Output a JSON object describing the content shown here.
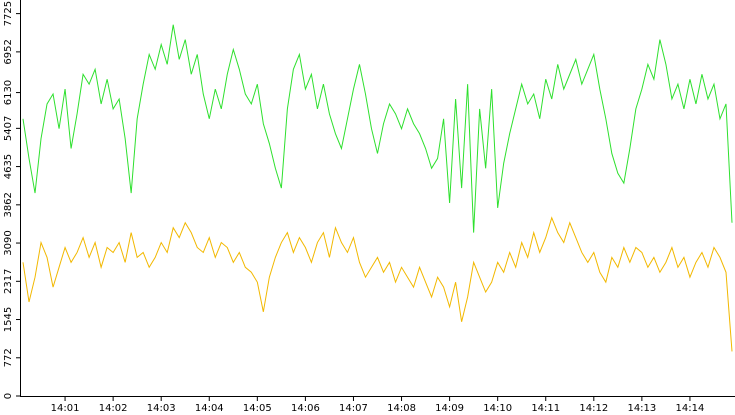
{
  "chart_data": {
    "type": "line",
    "categories": [
      null,
      null,
      null,
      null,
      null,
      null,
      null,
      "14:01",
      null,
      null,
      null,
      null,
      null,
      null,
      null,
      "14:02",
      null,
      null,
      null,
      null,
      null,
      null,
      null,
      "14:03",
      null,
      null,
      null,
      null,
      null,
      null,
      null,
      "14:04",
      null,
      null,
      null,
      null,
      null,
      null,
      null,
      "14:05",
      null,
      null,
      null,
      null,
      null,
      null,
      null,
      "14:06",
      null,
      null,
      null,
      null,
      null,
      null,
      null,
      "14:07",
      null,
      null,
      null,
      null,
      null,
      null,
      null,
      "14:08",
      null,
      null,
      null,
      null,
      null,
      null,
      null,
      "14:09",
      null,
      null,
      null,
      null,
      null,
      null,
      null,
      "14:10",
      null,
      null,
      null,
      null,
      null,
      null,
      null,
      "14:11",
      null,
      null,
      null,
      null,
      null,
      null,
      null,
      "14:12",
      null,
      null,
      null,
      null,
      null,
      null,
      null,
      "14:13",
      null,
      null,
      null,
      null,
      null,
      null,
      null,
      "14:14",
      null,
      null,
      null,
      null,
      null,
      null,
      null
    ],
    "series": [
      {
        "color": "#2ee02e",
        "values": [
          5600,
          4800,
          4100,
          5200,
          5900,
          6100,
          5400,
          6200,
          5000,
          5700,
          6500,
          6300,
          6600,
          5900,
          6400,
          5800,
          6000,
          5200,
          4100,
          5600,
          6300,
          6900,
          6600,
          7100,
          6700,
          7500,
          6800,
          7200,
          6500,
          6900,
          6100,
          5600,
          6200,
          5800,
          6500,
          7000,
          6600,
          6100,
          5900,
          6300,
          5500,
          5100,
          4600,
          4200,
          5800,
          6600,
          6900,
          6200,
          6500,
          5800,
          6300,
          5700,
          5300,
          5000,
          5600,
          6200,
          6700,
          6100,
          5400,
          4900,
          5500,
          5900,
          5700,
          5400,
          5800,
          5500,
          5300,
          5000,
          4600,
          4800,
          5600,
          3900,
          6000,
          4200,
          6300,
          3300,
          5800,
          4600,
          6200,
          3800,
          4700,
          5300,
          5800,
          6300,
          5900,
          6100,
          5600,
          6400,
          6000,
          6700,
          6200,
          6500,
          6800,
          6300,
          6600,
          6900,
          6200,
          5600,
          4900,
          4500,
          4300,
          5000,
          5800,
          6200,
          6700,
          6400,
          7200,
          6700,
          6000,
          6300,
          5800,
          6400,
          5900,
          6500,
          6000,
          6300,
          5600,
          5900,
          3500
        ]
      },
      {
        "color": "#f2b800",
        "values": [
          2700,
          1900,
          2400,
          3100,
          2800,
          2200,
          2600,
          3000,
          2700,
          2900,
          3200,
          2800,
          3100,
          2600,
          3000,
          2900,
          3100,
          2700,
          3300,
          2800,
          2900,
          2600,
          2800,
          3100,
          2900,
          3400,
          3200,
          3500,
          3300,
          3000,
          2900,
          3200,
          2800,
          3100,
          3000,
          2700,
          2900,
          2600,
          2500,
          2300,
          1700,
          2400,
          2800,
          3100,
          3300,
          2900,
          3200,
          3000,
          2700,
          3100,
          3300,
          2800,
          3400,
          3100,
          2900,
          3200,
          2700,
          2400,
          2600,
          2800,
          2500,
          2700,
          2300,
          2600,
          2400,
          2200,
          2600,
          2300,
          2000,
          2400,
          2200,
          1800,
          2300,
          1500,
          2000,
          2700,
          2400,
          2100,
          2300,
          2700,
          2500,
          2900,
          2600,
          3100,
          2800,
          3300,
          2900,
          3200,
          3600,
          3300,
          3100,
          3500,
          3200,
          2900,
          2700,
          2900,
          2500,
          2300,
          2800,
          2600,
          3000,
          2700,
          3000,
          2900,
          2600,
          2800,
          2500,
          2700,
          3000,
          2600,
          2800,
          2400,
          2700,
          2900,
          2600,
          3000,
          2800,
          2500,
          900
        ]
      }
    ],
    "ylim": [
      0,
      8000
    ],
    "yticks": [
      0,
      772,
      1545,
      2317,
      3090,
      3862,
      4635,
      5407,
      6130,
      6952,
      7725
    ]
  }
}
